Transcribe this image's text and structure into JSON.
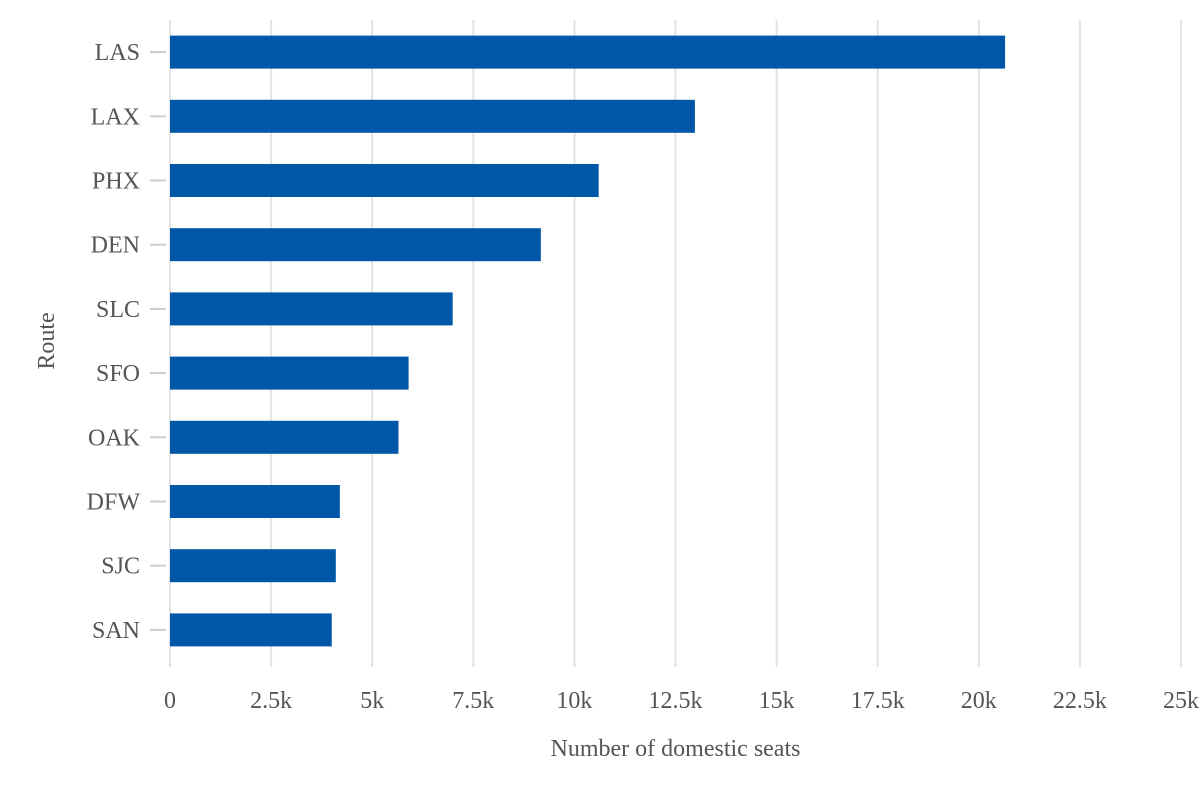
{
  "chart_data": {
    "type": "bar",
    "orientation": "horizontal",
    "categories": [
      "LAS",
      "LAX",
      "PHX",
      "DEN",
      "SLC",
      "SFO",
      "OAK",
      "DFW",
      "SJC",
      "SAN"
    ],
    "values": [
      20650,
      12980,
      10600,
      9170,
      6990,
      5900,
      5650,
      4200,
      4100,
      4000
    ],
    "xlabel": "Number of domestic seats",
    "ylabel": "Route",
    "xlim": [
      0,
      25000
    ],
    "xticks": [
      0,
      2500,
      5000,
      7500,
      10000,
      12500,
      15000,
      17500,
      20000,
      22500,
      25000
    ],
    "xtick_labels": [
      "0",
      "2.5k",
      "5k",
      "7.5k",
      "10k",
      "12.5k",
      "15k",
      "17.5k",
      "20k",
      "22.5k",
      "25k"
    ],
    "grid": true,
    "legend": "none",
    "bar_color": "#0057a7"
  }
}
